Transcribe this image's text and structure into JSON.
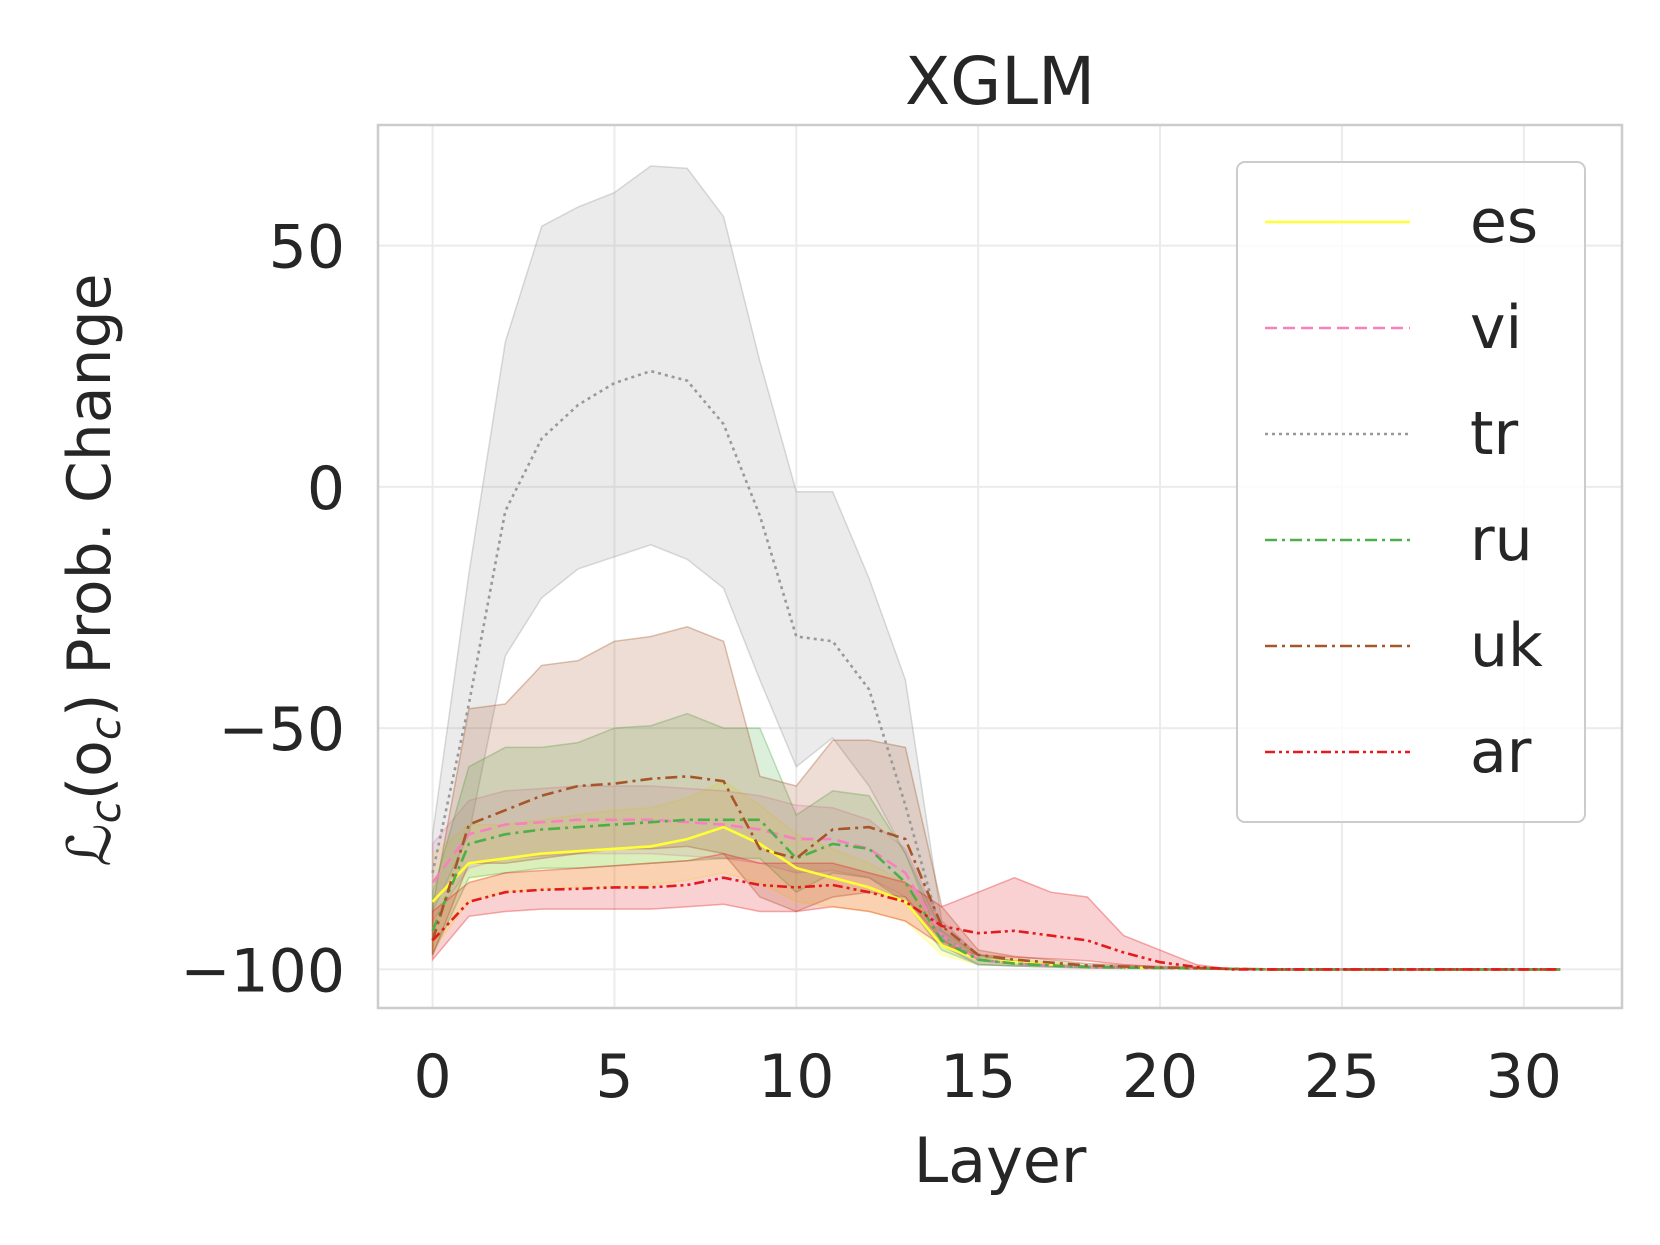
{
  "chart_data": {
    "type": "line",
    "title": "XGLM",
    "xlabel": "Layer",
    "ylabel_prefix": "ℒ",
    "ylabel_sub1": "c",
    "ylabel_mid": "(o",
    "ylabel_sub2": "c",
    "ylabel_suffix": ") Prob. Change",
    "xlim": [
      -1.5,
      32.7
    ],
    "ylim": [
      -108,
      75
    ],
    "xticks": [
      0,
      5,
      10,
      15,
      20,
      25,
      30
    ],
    "xtick_labels": [
      "0",
      "5",
      "10",
      "15",
      "20",
      "25",
      "30"
    ],
    "yticks": [
      50,
      0,
      -50,
      -100
    ],
    "ytick_labels": [
      "50",
      "0",
      "−50",
      "−100"
    ],
    "grid": true,
    "legend_position": "top-right",
    "x": [
      0,
      1,
      2,
      3,
      4,
      5,
      6,
      7,
      8,
      9,
      10,
      11,
      12,
      13,
      14,
      15,
      16,
      17,
      18,
      19,
      20,
      21,
      22,
      23,
      24,
      25,
      26,
      27,
      28,
      29,
      30,
      31
    ],
    "series": [
      {
        "name": "es",
        "color": "#ffff33",
        "dash": "solid",
        "values": [
          -86,
          -78,
          -77,
          -76,
          -75.5,
          -75,
          -74.5,
          -73,
          -70.5,
          -74,
          -79,
          -81,
          -83,
          -86,
          -95,
          -98,
          -98.5,
          -99,
          -99.5,
          -99.6,
          -99.7,
          -99.8,
          -99.9,
          -100,
          -100,
          -100,
          -100,
          -100,
          -100,
          -100,
          -100,
          -100
        ],
        "lower": [
          -96,
          -86,
          -84,
          -83.5,
          -83,
          -83,
          -82.5,
          -81.5,
          -80,
          -82,
          -86,
          -87,
          -88,
          -90,
          -97,
          -99,
          -99.2,
          -99.4,
          -99.6,
          -99.7,
          -99.8,
          -99.9,
          -100,
          -100,
          -100,
          -100,
          -100,
          -100,
          -100,
          -100,
          -100,
          -100
        ],
        "upper": [
          -76,
          -70,
          -70,
          -69,
          -68,
          -67,
          -66.5,
          -64.5,
          -61,
          -66,
          -72,
          -75,
          -78,
          -82,
          -93,
          -97,
          -97.8,
          -98.6,
          -99.4,
          -99.5,
          -99.6,
          -99.7,
          -99.8,
          -100,
          -100,
          -100,
          -100,
          -100,
          -100,
          -100,
          -100,
          -100
        ]
      },
      {
        "name": "vi",
        "color": "#f781bf",
        "dash": "dashed",
        "values": [
          -82,
          -72,
          -70,
          -69.5,
          -69,
          -69,
          -69,
          -69.5,
          -70,
          -71,
          -73,
          -73,
          -75,
          -80,
          -93,
          -98,
          -98.8,
          -99.2,
          -99.5,
          -99.6,
          -99.7,
          -99.8,
          -99.9,
          -100,
          -100,
          -100,
          -100,
          -100,
          -100,
          -100,
          -100,
          -100
        ],
        "lower": [
          -90,
          -79,
          -77,
          -76.5,
          -76,
          -76,
          -76,
          -76.5,
          -77,
          -78,
          -80,
          -79.5,
          -81,
          -85,
          -95,
          -99,
          -99.3,
          -99.5,
          -99.7,
          -99.8,
          -99.8,
          -99.9,
          -100,
          -100,
          -100,
          -100,
          -100,
          -100,
          -100,
          -100,
          -100,
          -100
        ],
        "upper": [
          -74,
          -65,
          -63,
          -62.5,
          -62,
          -62,
          -62,
          -62.5,
          -63,
          -64,
          -66,
          -66.5,
          -69,
          -75,
          -91,
          -97,
          -98.3,
          -98.9,
          -99.3,
          -99.4,
          -99.6,
          -99.7,
          -99.8,
          -100,
          -100,
          -100,
          -100,
          -100,
          -100,
          -100,
          -100,
          -100
        ]
      },
      {
        "name": "tr",
        "color": "#999999",
        "dash": "dotted",
        "values": [
          -80,
          -45,
          -5,
          10,
          17,
          21.5,
          24,
          22,
          13,
          -6,
          -31,
          -32,
          -42,
          -66,
          -93,
          -98,
          -98.8,
          -99.2,
          -99.5,
          -99.6,
          -99.7,
          -99.8,
          -99.9,
          -100,
          -100,
          -100,
          -100,
          -100,
          -100,
          -100,
          -100,
          -100
        ],
        "lower": [
          -88,
          -72,
          -35,
          -23,
          -17,
          -14.5,
          -12,
          -15,
          -21,
          -40,
          -58,
          -52,
          -62,
          -76,
          -95,
          -99,
          -99.3,
          -99.5,
          -99.7,
          -99.8,
          -99.8,
          -99.9,
          -100,
          -100,
          -100,
          -100,
          -100,
          -100,
          -100,
          -100,
          -100,
          -100
        ],
        "upper": [
          -72,
          -18,
          30,
          54,
          58,
          61,
          66.5,
          66,
          56,
          26,
          -1,
          -1,
          -19,
          -40,
          -90,
          -97,
          -98.3,
          -98.9,
          -99.3,
          -99.4,
          -99.6,
          -99.7,
          -99.8,
          -100,
          -100,
          -100,
          -100,
          -100,
          -100,
          -100,
          -100,
          -100
        ]
      },
      {
        "name": "ru",
        "color": "#4daf4a",
        "dash": "dashdot",
        "values": [
          -92,
          -74,
          -72,
          -71,
          -70.5,
          -70,
          -69.5,
          -69,
          -69,
          -69,
          -77,
          -74,
          -75,
          -82,
          -94,
          -98,
          -98.8,
          -99.2,
          -99.5,
          -99.6,
          -99.7,
          -99.8,
          -99.9,
          -100,
          -100,
          -100,
          -100,
          -100,
          -100,
          -100,
          -100,
          -100
        ],
        "lower": [
          -97,
          -81,
          -80,
          -79,
          -79,
          -78.5,
          -78,
          -77.5,
          -77,
          -77,
          -84,
          -80,
          -81,
          -86,
          -96,
          -99,
          -99.3,
          -99.5,
          -99.7,
          -99.8,
          -99.8,
          -99.9,
          -100,
          -100,
          -100,
          -100,
          -100,
          -100,
          -100,
          -100,
          -100,
          -100
        ],
        "upper": [
          -84,
          -58,
          -54,
          -54,
          -53,
          -50,
          -49.5,
          -47,
          -50,
          -50,
          -68,
          -63,
          -64,
          -76,
          -92,
          -97,
          -98.3,
          -98.9,
          -99.3,
          -99.4,
          -99.6,
          -99.7,
          -99.8,
          -100,
          -100,
          -100,
          -100,
          -100,
          -100,
          -100,
          -100,
          -100
        ]
      },
      {
        "name": "uk",
        "color": "#a65628",
        "dash": "dashdot",
        "values": [
          -94,
          -70,
          -67,
          -64,
          -62,
          -61.5,
          -60.5,
          -60,
          -61,
          -75,
          -77,
          -71,
          -70.5,
          -73,
          -91,
          -97,
          -98,
          -98.6,
          -99.2,
          -99.4,
          -99.6,
          -99.7,
          -99.9,
          -100,
          -100,
          -100,
          -100,
          -100,
          -100,
          -100,
          -100,
          -100
        ],
        "lower": [
          -97,
          -78,
          -78,
          -77,
          -76,
          -75,
          -75,
          -74.5,
          -76,
          -85,
          -88,
          -85,
          -84,
          -85,
          -94,
          -98,
          -98.6,
          -99.2,
          -99.6,
          -99.7,
          -99.8,
          -99.9,
          -100,
          -100,
          -100,
          -100,
          -100,
          -100,
          -100,
          -100,
          -100,
          -100
        ],
        "upper": [
          -87,
          -46,
          -45,
          -37,
          -36,
          -32,
          -31,
          -29,
          -32,
          -60,
          -62,
          -52.5,
          -52.5,
          -54,
          -87,
          -96,
          -97.3,
          -98,
          -98.8,
          -99.1,
          -99.4,
          -99.5,
          -99.8,
          -100,
          -100,
          -100,
          -100,
          -100,
          -100,
          -100,
          -100,
          -100
        ]
      },
      {
        "name": "ar",
        "color": "#e41a1c",
        "dash": "dashdotdot",
        "values": [
          -94,
          -86,
          -84,
          -83.5,
          -83.3,
          -83,
          -83,
          -82.5,
          -81,
          -82.5,
          -83,
          -82.5,
          -84,
          -86,
          -91,
          -92.5,
          -92,
          -93,
          -94,
          -96.5,
          -98.5,
          -99.5,
          -100,
          -100,
          -100,
          -100,
          -100,
          -100,
          -100,
          -100,
          -100,
          -100
        ],
        "lower": [
          -98,
          -89,
          -88,
          -87.5,
          -87.5,
          -87.5,
          -87.5,
          -87,
          -86.5,
          -88,
          -88,
          -87,
          -88,
          -90,
          -95,
          -97,
          -97.5,
          -97.8,
          -98.2,
          -99,
          -99.5,
          -99.8,
          -100,
          -100,
          -100,
          -100,
          -100,
          -100,
          -100,
          -100,
          -100,
          -100
        ],
        "upper": [
          -88,
          -82,
          -80,
          -79.5,
          -79,
          -78.5,
          -78,
          -77.5,
          -76,
          -78,
          -78,
          -78,
          -80,
          -82,
          -87,
          -84,
          -81,
          -84,
          -85,
          -93,
          -96,
          -99,
          -100,
          -100,
          -100,
          -100,
          -100,
          -100,
          -100,
          -100,
          -100,
          -100
        ]
      }
    ]
  }
}
